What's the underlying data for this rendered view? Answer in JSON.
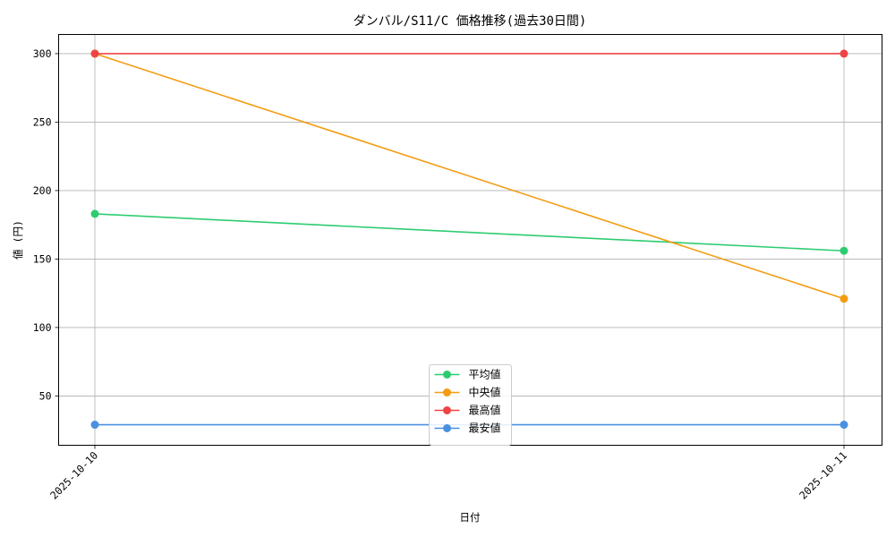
{
  "chart_data": {
    "type": "line",
    "title": "ダンバル/S11/C 価格推移(過去30日間)",
    "xlabel": "日付",
    "ylabel": "値 (円)",
    "categories": [
      "2025-10-10",
      "2025-10-11"
    ],
    "ylim": [
      14,
      314
    ],
    "yticks": [
      50,
      100,
      150,
      200,
      250,
      300
    ],
    "grid": true,
    "legend_position": "bottom-center",
    "series": [
      {
        "name": "平均値",
        "color": "#2ecc71",
        "values": [
          183,
          156
        ]
      },
      {
        "name": "中央値",
        "color": "#f39c12",
        "values": [
          300,
          121
        ]
      },
      {
        "name": "最高値",
        "color": "#ef4444",
        "values": [
          300,
          300
        ]
      },
      {
        "name": "最安値",
        "color": "#4a90e2",
        "values": [
          29,
          29
        ]
      }
    ]
  }
}
